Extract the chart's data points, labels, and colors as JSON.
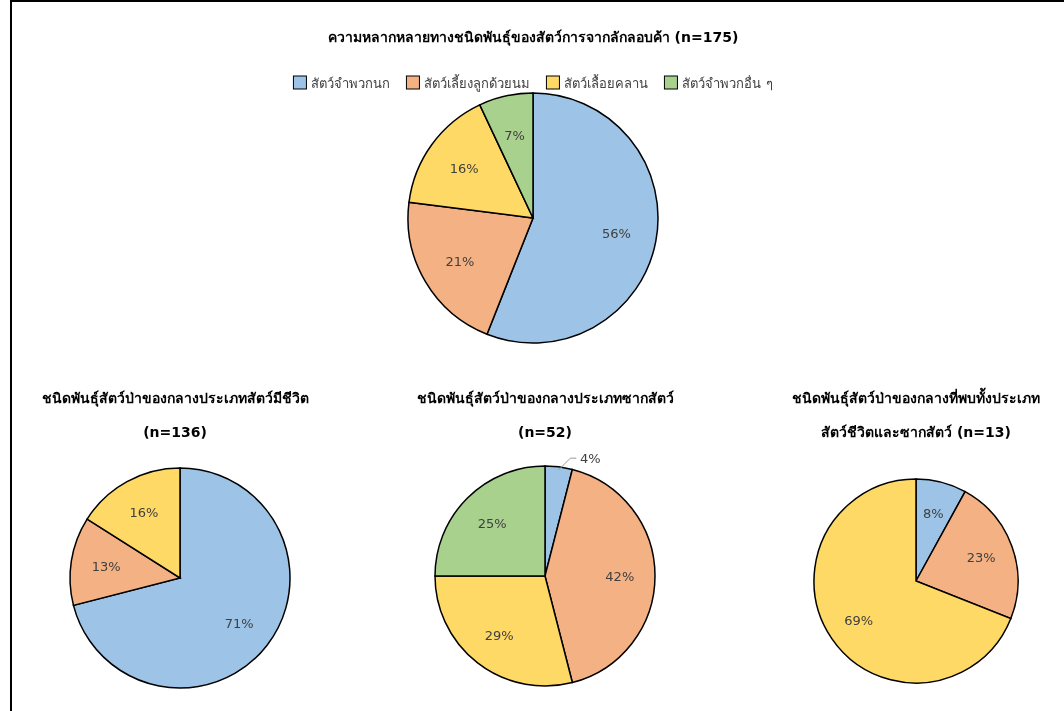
{
  "chart_data": [
    {
      "type": "pie",
      "title": "ความหลากหลายทางชนิดพันธุ์ของสัตว์การจากลักลอบค้า (n=175)",
      "categories": [
        "สัตว์จำพวกนก",
        "สัตว์เลี้ยงลูกด้วยนม",
        "สัตว์เลื้อยคลาน",
        "สัตว์จำพวกอื่น ๆ"
      ],
      "values": [
        56,
        21,
        16,
        7
      ],
      "colors": [
        "#9dc3e6",
        "#f4b183",
        "#ffd966",
        "#a9d18e"
      ],
      "value_labels": [
        "56%",
        "21%",
        "16%",
        "7%"
      ],
      "legend": "top"
    },
    {
      "type": "pie",
      "title": "ชนิดพันธุ์สัตว์ป่าของกลางประเภทสัตว์มีชีวิต\n(n=136)",
      "categories": [
        null,
        null,
        null
      ],
      "values": [
        71,
        13,
        16
      ],
      "colors": [
        "#9dc3e6",
        "#f4b183",
        "#ffd966"
      ],
      "value_labels": [
        "71%",
        "13%",
        "16%"
      ]
    },
    {
      "type": "pie",
      "title": "ชนิดพันธุ์สัตว์ป่าของกลางประเภทซากสัตว์\n(n=52)",
      "categories": [
        null,
        null,
        null,
        null
      ],
      "values": [
        4,
        42,
        29,
        25
      ],
      "colors": [
        "#9dc3e6",
        "#f4b183",
        "#ffd966",
        "#a9d18e"
      ],
      "value_labels": [
        "4%",
        "42%",
        "29%",
        "25%"
      ]
    },
    {
      "type": "pie",
      "title": "ชนิดพันธุ์สัตว์ป่าของกลางที่พบทั้งประเภท\nสัตว์ชีวิตและซากสัตว์ (n=13)",
      "categories": [
        null,
        null,
        null
      ],
      "values": [
        8,
        23,
        69
      ],
      "colors": [
        "#9dc3e6",
        "#f4b183",
        "#ffd966"
      ],
      "value_labels": [
        "8%",
        "23%",
        "69%"
      ]
    }
  ]
}
